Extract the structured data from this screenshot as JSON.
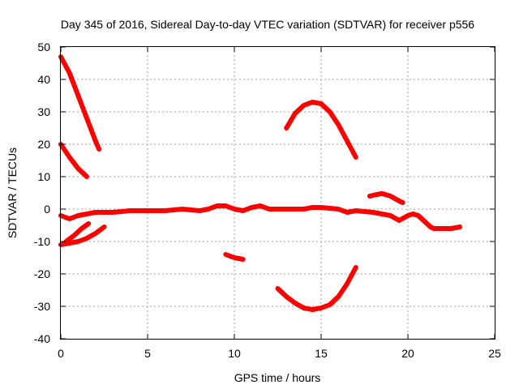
{
  "chart_data": {
    "type": "line",
    "title": "Day 345 of 2016, Sidereal Day-to-day VTEC variation (SDTVAR) for receiver p556",
    "xlabel": "GPS time / hours",
    "ylabel": "SDTVAR / TECUs",
    "xlim": [
      0,
      25
    ],
    "ylim": [
      -40,
      50
    ],
    "xticks": [
      "0",
      "5",
      "10",
      "15",
      "20",
      "25"
    ],
    "yticks": [
      "-40",
      "-30",
      "-20",
      "-10",
      "0",
      "10",
      "20",
      "30",
      "40",
      "50"
    ],
    "grid": true,
    "color": "#ff0000",
    "series": [
      {
        "name": "arc-main",
        "points": [
          [
            0,
            -2
          ],
          [
            0.5,
            -3
          ],
          [
            1,
            -2
          ],
          [
            1.5,
            -1.5
          ],
          [
            2,
            -1
          ],
          [
            3,
            -1
          ],
          [
            4,
            -0.5
          ],
          [
            5,
            -0.5
          ],
          [
            6,
            -0.5
          ],
          [
            7,
            0
          ],
          [
            8,
            -0.5
          ],
          [
            8.5,
            0
          ],
          [
            9,
            1
          ],
          [
            9.5,
            1
          ],
          [
            10,
            0
          ],
          [
            10.5,
            -0.5
          ],
          [
            11,
            0.5
          ],
          [
            11.5,
            1
          ],
          [
            12,
            0
          ],
          [
            13,
            0
          ],
          [
            14,
            0
          ],
          [
            14.5,
            0.5
          ],
          [
            15,
            0.5
          ],
          [
            16,
            0
          ],
          [
            16.5,
            -1
          ],
          [
            17,
            -0.5
          ],
          [
            18,
            -1
          ],
          [
            18.5,
            -1.5
          ],
          [
            19,
            -2
          ],
          [
            19.5,
            -3.5
          ],
          [
            20,
            -2
          ],
          [
            20.3,
            -1.5
          ],
          [
            20.6,
            -2
          ],
          [
            21,
            -4
          ],
          [
            21.3,
            -5.5
          ],
          [
            21.5,
            -6
          ],
          [
            22,
            -6
          ],
          [
            22.5,
            -6
          ],
          [
            23,
            -5.5
          ]
        ]
      },
      {
        "name": "arc-down-high",
        "points": [
          [
            0,
            47
          ],
          [
            0.5,
            42
          ],
          [
            1,
            35
          ],
          [
            1.5,
            28
          ],
          [
            2,
            21
          ],
          [
            2.2,
            18.5
          ]
        ]
      },
      {
        "name": "arc-down-mid",
        "points": [
          [
            0,
            20
          ],
          [
            0.5,
            16
          ],
          [
            1,
            12.5
          ],
          [
            1.5,
            10
          ]
        ]
      },
      {
        "name": "arc-neg-lower",
        "points": [
          [
            0,
            -11
          ],
          [
            0.5,
            -10.5
          ],
          [
            1,
            -10
          ],
          [
            1.5,
            -9
          ],
          [
            2,
            -7.5
          ],
          [
            2.5,
            -5.5
          ]
        ]
      },
      {
        "name": "arc-neg-upper",
        "points": [
          [
            0.3,
            -10
          ],
          [
            0.8,
            -8
          ],
          [
            1.2,
            -6
          ],
          [
            1.6,
            -4.5
          ]
        ]
      },
      {
        "name": "arc-hump",
        "points": [
          [
            13,
            25
          ],
          [
            13.5,
            29.5
          ],
          [
            14,
            32
          ],
          [
            14.5,
            33
          ],
          [
            15,
            32.5
          ],
          [
            15.5,
            30
          ],
          [
            16,
            26
          ],
          [
            16.5,
            21
          ],
          [
            17,
            16
          ]
        ]
      },
      {
        "name": "arc-dip",
        "points": [
          [
            12.5,
            -24.5
          ],
          [
            13,
            -27
          ],
          [
            13.5,
            -29
          ],
          [
            14,
            -30.5
          ],
          [
            14.5,
            -31
          ],
          [
            15,
            -30.5
          ],
          [
            15.5,
            -29.5
          ],
          [
            16,
            -27
          ],
          [
            16.5,
            -23
          ],
          [
            17,
            -18
          ]
        ]
      },
      {
        "name": "arc-short-neg",
        "points": [
          [
            9.5,
            -14
          ],
          [
            10,
            -15
          ],
          [
            10.5,
            -15.5
          ]
        ]
      },
      {
        "name": "arc-right-bump",
        "points": [
          [
            17.8,
            4
          ],
          [
            18.2,
            4.5
          ],
          [
            18.5,
            4.8
          ],
          [
            19,
            4
          ],
          [
            19.5,
            2.5
          ],
          [
            19.7,
            2
          ]
        ]
      }
    ]
  }
}
